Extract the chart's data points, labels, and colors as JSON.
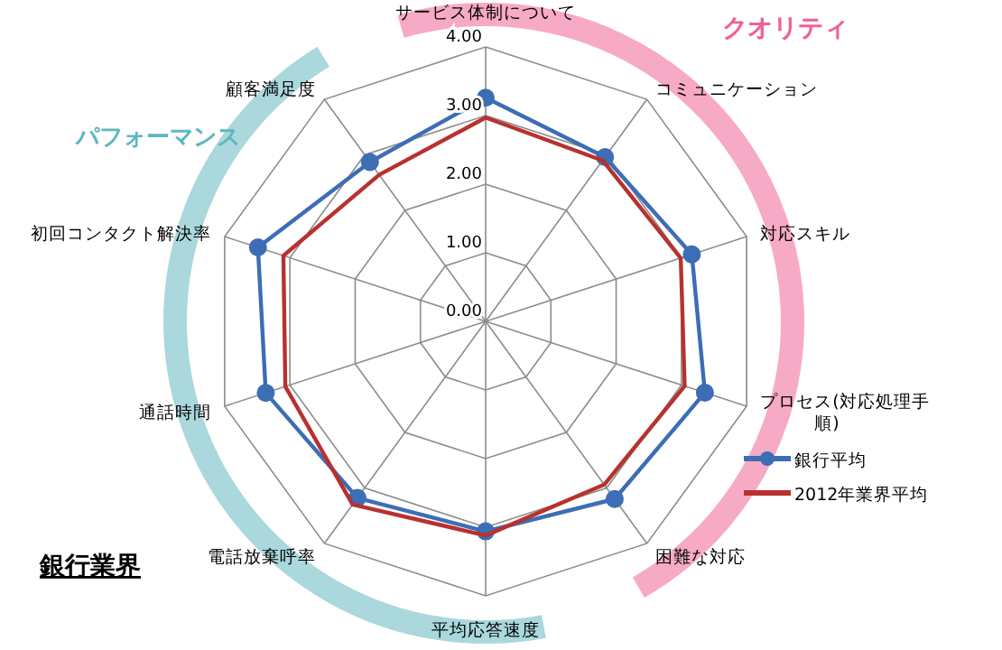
{
  "chart_data": {
    "type": "radar",
    "categories": [
      "サービス体制について",
      "コミュニケーション",
      "対応スキル",
      "プロセス(対応処理手順)",
      "困難な対応",
      "平均応答速度",
      "電話放棄呼率",
      "通話時間",
      "初回コンタクト解決率",
      "顧客満足度"
    ],
    "series": [
      {
        "name": "銀行平均",
        "color": "#3d6db5",
        "marker": "circle",
        "values": [
          3.26,
          2.96,
          3.16,
          3.36,
          3.2,
          3.06,
          3.18,
          3.37,
          3.49,
          2.87
        ]
      },
      {
        "name": "2012年業界平均",
        "color": "#b8312f",
        "marker": "none",
        "values": [
          2.97,
          2.9,
          2.99,
          3.05,
          2.94,
          3.12,
          3.3,
          3.07,
          3.1,
          2.64
        ]
      }
    ],
    "ylim": [
      0,
      4
    ],
    "yticks": [
      {
        "value": 0,
        "label": "0.00"
      },
      {
        "value": 1,
        "label": "1.00"
      },
      {
        "value": 2,
        "label": "2.00"
      },
      {
        "value": 3,
        "label": "3.00"
      },
      {
        "value": 4,
        "label": "4.00"
      }
    ],
    "grid": true,
    "legend": "right",
    "annotations": [
      "クオリティ",
      "パフォーマンス",
      "銀行業界"
    ]
  }
}
